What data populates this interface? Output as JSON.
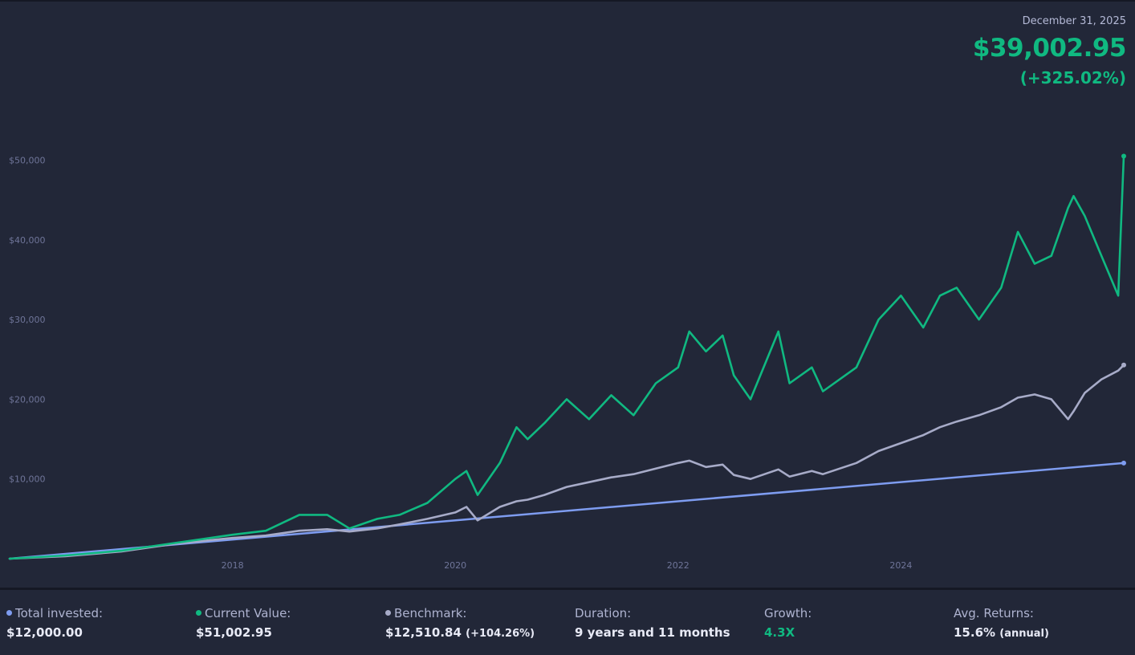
{
  "header": {
    "date": "December 31, 2025",
    "value": "$39,002.95",
    "change": "(+325.02%)"
  },
  "colors": {
    "background": "#222738",
    "current_value": "#10b981",
    "benchmark": "#a7abc8",
    "invested": "#7e9cf0",
    "tick": "#6f7599"
  },
  "chart_data": {
    "type": "line",
    "title": "",
    "xlabel": "",
    "ylabel": "",
    "xlim": [
      2016.0,
      2026.0
    ],
    "ylim": [
      0,
      57000
    ],
    "x_ticks": [
      {
        "v": 2018,
        "label": "2018"
      },
      {
        "v": 2020,
        "label": "2020"
      },
      {
        "v": 2022,
        "label": "2022"
      },
      {
        "v": 2024,
        "label": "2024"
      }
    ],
    "y_ticks": [
      {
        "v": 10000,
        "label": "$10,000"
      },
      {
        "v": 20000,
        "label": "$20,000"
      },
      {
        "v": 30000,
        "label": "$30,000"
      },
      {
        "v": 40000,
        "label": "$40,000"
      },
      {
        "v": 50000,
        "label": "$50,000"
      }
    ],
    "grid": false,
    "series": [
      {
        "key": "current",
        "points": [
          [
            2016.0,
            0
          ],
          [
            2016.5,
            400
          ],
          [
            2017.0,
            1000
          ],
          [
            2017.5,
            2000
          ],
          [
            2018.0,
            3000
          ],
          [
            2018.3,
            3500
          ],
          [
            2018.6,
            5500
          ],
          [
            2018.85,
            5500
          ],
          [
            2019.05,
            3800
          ],
          [
            2019.3,
            5000
          ],
          [
            2019.5,
            5500
          ],
          [
            2019.75,
            7000
          ],
          [
            2020.0,
            10000
          ],
          [
            2020.1,
            11000
          ],
          [
            2020.2,
            8000
          ],
          [
            2020.4,
            12000
          ],
          [
            2020.55,
            16500
          ],
          [
            2020.65,
            15000
          ],
          [
            2020.8,
            17000
          ],
          [
            2021.0,
            20000
          ],
          [
            2021.2,
            17500
          ],
          [
            2021.4,
            20500
          ],
          [
            2021.6,
            18000
          ],
          [
            2021.8,
            22000
          ],
          [
            2022.0,
            24000
          ],
          [
            2022.1,
            28500
          ],
          [
            2022.25,
            26000
          ],
          [
            2022.4,
            28000
          ],
          [
            2022.5,
            23000
          ],
          [
            2022.65,
            20000
          ],
          [
            2022.9,
            28500
          ],
          [
            2023.0,
            22000
          ],
          [
            2023.2,
            24000
          ],
          [
            2023.3,
            21000
          ],
          [
            2023.6,
            24000
          ],
          [
            2023.8,
            30000
          ],
          [
            2024.0,
            33000
          ],
          [
            2024.2,
            29000
          ],
          [
            2024.35,
            33000
          ],
          [
            2024.5,
            34000
          ],
          [
            2024.7,
            30000
          ],
          [
            2024.9,
            34000
          ],
          [
            2025.05,
            41000
          ],
          [
            2025.2,
            37000
          ],
          [
            2025.35,
            38000
          ],
          [
            2025.5,
            44000
          ],
          [
            2025.55,
            45500
          ],
          [
            2025.65,
            43000
          ],
          [
            2025.8,
            38000
          ],
          [
            2025.95,
            33000
          ],
          [
            2026.0,
            50500
          ]
        ]
      },
      {
        "key": "benchmark",
        "points": [
          [
            2016.0,
            0
          ],
          [
            2016.5,
            300
          ],
          [
            2017.0,
            900
          ],
          [
            2017.5,
            1900
          ],
          [
            2018.0,
            2600
          ],
          [
            2018.3,
            2900
          ],
          [
            2018.6,
            3500
          ],
          [
            2018.85,
            3700
          ],
          [
            2019.05,
            3400
          ],
          [
            2019.3,
            3800
          ],
          [
            2019.5,
            4300
          ],
          [
            2019.75,
            5000
          ],
          [
            2020.0,
            5800
          ],
          [
            2020.1,
            6500
          ],
          [
            2020.2,
            4800
          ],
          [
            2020.4,
            6500
          ],
          [
            2020.55,
            7200
          ],
          [
            2020.65,
            7400
          ],
          [
            2020.8,
            8000
          ],
          [
            2021.0,
            9000
          ],
          [
            2021.2,
            9600
          ],
          [
            2021.4,
            10200
          ],
          [
            2021.6,
            10600
          ],
          [
            2021.8,
            11300
          ],
          [
            2022.0,
            12000
          ],
          [
            2022.1,
            12300
          ],
          [
            2022.25,
            11500
          ],
          [
            2022.4,
            11800
          ],
          [
            2022.5,
            10500
          ],
          [
            2022.65,
            10000
          ],
          [
            2022.9,
            11200
          ],
          [
            2023.0,
            10300
          ],
          [
            2023.2,
            11000
          ],
          [
            2023.3,
            10600
          ],
          [
            2023.6,
            12000
          ],
          [
            2023.8,
            13500
          ],
          [
            2024.0,
            14500
          ],
          [
            2024.2,
            15500
          ],
          [
            2024.35,
            16500
          ],
          [
            2024.5,
            17200
          ],
          [
            2024.7,
            18000
          ],
          [
            2024.9,
            19000
          ],
          [
            2025.05,
            20200
          ],
          [
            2025.2,
            20600
          ],
          [
            2025.35,
            20000
          ],
          [
            2025.5,
            17500
          ],
          [
            2025.55,
            18500
          ],
          [
            2025.65,
            20800
          ],
          [
            2025.8,
            22500
          ],
          [
            2025.95,
            23600
          ],
          [
            2026.0,
            24300
          ]
        ]
      },
      {
        "key": "invested",
        "points": [
          [
            2016.0,
            0
          ],
          [
            2026.0,
            12000
          ]
        ]
      }
    ]
  },
  "stats": {
    "total_invested": {
      "label": "Total invested:",
      "value": "$12,000.00"
    },
    "current_value": {
      "label": "Current Value:",
      "value": "$51,002.95"
    },
    "benchmark": {
      "label": "Benchmark:",
      "value": "$12,510.84",
      "note": "(+104.26%)"
    },
    "duration": {
      "label": "Duration:",
      "value": "9 years and 11 months"
    },
    "growth": {
      "label": "Growth:",
      "value": "4.3X"
    },
    "avg_returns": {
      "label": "Avg. Returns:",
      "value": "15.6%",
      "note": "(annual)"
    }
  }
}
